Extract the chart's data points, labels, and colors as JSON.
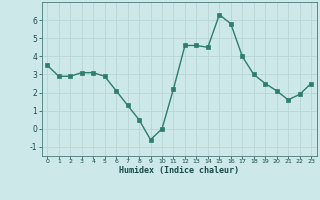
{
  "x": [
    0,
    1,
    2,
    3,
    4,
    5,
    6,
    7,
    8,
    9,
    10,
    11,
    12,
    13,
    14,
    15,
    16,
    17,
    18,
    19,
    20,
    21,
    22,
    23
  ],
  "y": [
    3.5,
    2.9,
    2.9,
    3.1,
    3.1,
    2.9,
    2.1,
    1.3,
    0.5,
    -0.6,
    0.0,
    2.2,
    4.6,
    4.6,
    4.5,
    6.3,
    5.8,
    4.0,
    3.0,
    2.5,
    2.1,
    1.6,
    1.9,
    2.5
  ],
  "xlabel": "Humidex (Indice chaleur)",
  "xlim": [
    -0.5,
    23.5
  ],
  "ylim": [
    -1.5,
    7.0
  ],
  "yticks": [
    -1,
    0,
    1,
    2,
    3,
    4,
    5,
    6
  ],
  "xticks": [
    0,
    1,
    2,
    3,
    4,
    5,
    6,
    7,
    8,
    9,
    10,
    11,
    12,
    13,
    14,
    15,
    16,
    17,
    18,
    19,
    20,
    21,
    22,
    23
  ],
  "line_color": "#2e7d6e",
  "bg_color": "#cce8e8",
  "grid_color": "#b8d4d4",
  "line_width": 1.0,
  "marker_size": 2.5
}
